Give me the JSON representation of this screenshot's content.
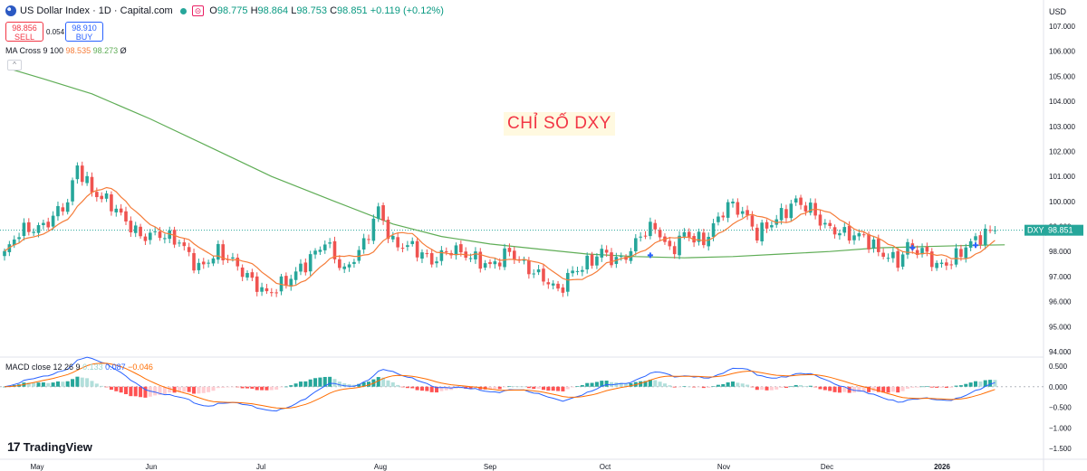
{
  "header": {
    "title": "US Dollar Index · 1D · Capital.com",
    "open_label": "O",
    "open": "98.775",
    "high_label": "H",
    "high": "98.864",
    "low_label": "L",
    "low": "98.753",
    "close_label": "C",
    "close": "98.851",
    "change": "+0.119 (+0.12%)",
    "sell_price": "98.856",
    "sell_label": "SELL",
    "buy_price": "98.910",
    "buy_label": "BUY",
    "spread": "0.054",
    "currency": "USD",
    "logo_text": "TradingView"
  },
  "colors": {
    "up": "#26a69a",
    "down": "#ef5350",
    "ma_fast": "#f57c39",
    "ma_slow": "#5fad56",
    "macd_line": "#2962ff",
    "signal_line": "#ff6d00",
    "annotation": "#f23645"
  },
  "icons": [
    "flag-icon",
    "market-open-dot-icon",
    "tradingview-logo-icon",
    "collapse-chevron-icon",
    "cross-signal-icon"
  ],
  "chart_data": [
    {
      "type": "candlestick",
      "symbol": "DXY",
      "last_price_label": "DXY",
      "last_price": 98.851,
      "annotation": "CHỈ SỐ DXY",
      "indicator_label": "MA Cross 9 100",
      "ma_fast_value": "98.535",
      "ma_slow_value": "98.273",
      "indicator_extra": "Ø",
      "ylim": [
        93.6,
        107.6
      ],
      "y_ticks": [
        "107.000",
        "106.000",
        "105.000",
        "104.000",
        "103.000",
        "102.000",
        "101.000",
        "100.000",
        "99.000",
        "98.000",
        "97.000",
        "96.000",
        "95.000",
        "94.000"
      ],
      "x_tick_labels": [
        "May",
        "Jun",
        "Jul",
        "Aug",
        "Sep",
        "Oct",
        "Nov",
        "Dec",
        "2026"
      ],
      "grid": false,
      "ma_slow_points": [
        [
          1,
          105.3
        ],
        [
          8,
          104.9
        ],
        [
          18,
          104.3
        ],
        [
          30,
          103.3
        ],
        [
          42,
          102.2
        ],
        [
          55,
          101.0
        ],
        [
          68,
          100.0
        ],
        [
          80,
          99.1
        ],
        [
          90,
          98.6
        ],
        [
          100,
          98.3
        ],
        [
          110,
          98.1
        ],
        [
          120,
          97.9
        ],
        [
          130,
          97.8
        ],
        [
          140,
          97.75
        ],
        [
          150,
          97.8
        ],
        [
          160,
          97.9
        ],
        [
          170,
          98.0
        ],
        [
          180,
          98.15
        ],
        [
          190,
          98.2
        ],
        [
          200,
          98.25
        ],
        [
          206,
          98.27
        ]
      ],
      "cross_markers": [
        [
          133,
          97.85
        ],
        [
          187,
          98.15
        ],
        [
          200,
          98.25
        ]
      ]
    },
    {
      "type": "macd",
      "indicator_label": "MACD close 12 26 9",
      "hist_value": "0.133",
      "macd_value": "0.087",
      "signal_value": "−0.046",
      "ylim": [
        -1.65,
        0.6
      ],
      "y_ticks": [
        "0.500",
        "0.000",
        "−0.500",
        "−1.000",
        "−1.500"
      ]
    }
  ]
}
